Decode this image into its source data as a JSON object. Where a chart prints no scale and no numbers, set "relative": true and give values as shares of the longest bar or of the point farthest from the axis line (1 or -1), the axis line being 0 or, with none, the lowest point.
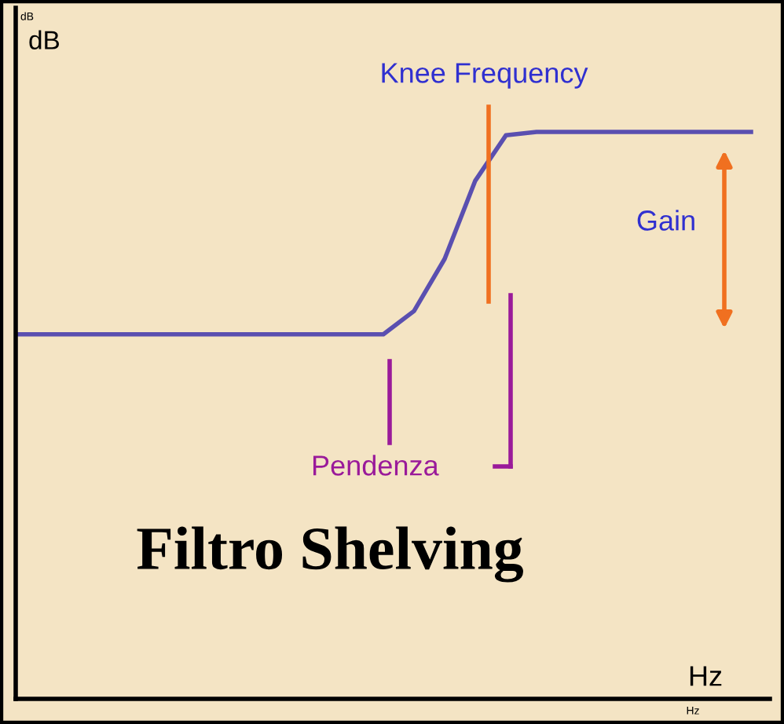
{
  "chart_data": {
    "type": "line",
    "relative": true,
    "xlabel": "Hz",
    "ylabel": "dB",
    "categories": [
      null,
      null,
      null,
      null,
      null,
      null,
      null,
      null,
      null,
      null,
      null,
      null,
      null,
      null,
      null,
      null,
      null,
      null,
      null,
      null,
      null,
      null,
      null,
      null,
      null
    ],
    "series": [
      {
        "color": "#5a4fb0",
        "values": [
          0.643,
          0.643,
          0.643,
          0.643,
          0.643,
          0.643,
          0.643,
          0.643,
          0.643,
          0.643,
          0.643,
          0.643,
          0.643,
          0.684,
          0.776,
          0.914,
          0.994,
          1,
          1,
          1,
          1,
          1,
          1,
          1,
          1
        ]
      }
    ],
    "annotations": [
      "Knee Frequency",
      "Gain",
      "Pendenza",
      "Filtro Shelving",
      "dB",
      "Hz"
    ],
    "marker": "none",
    "line_style": "solid"
  }
}
